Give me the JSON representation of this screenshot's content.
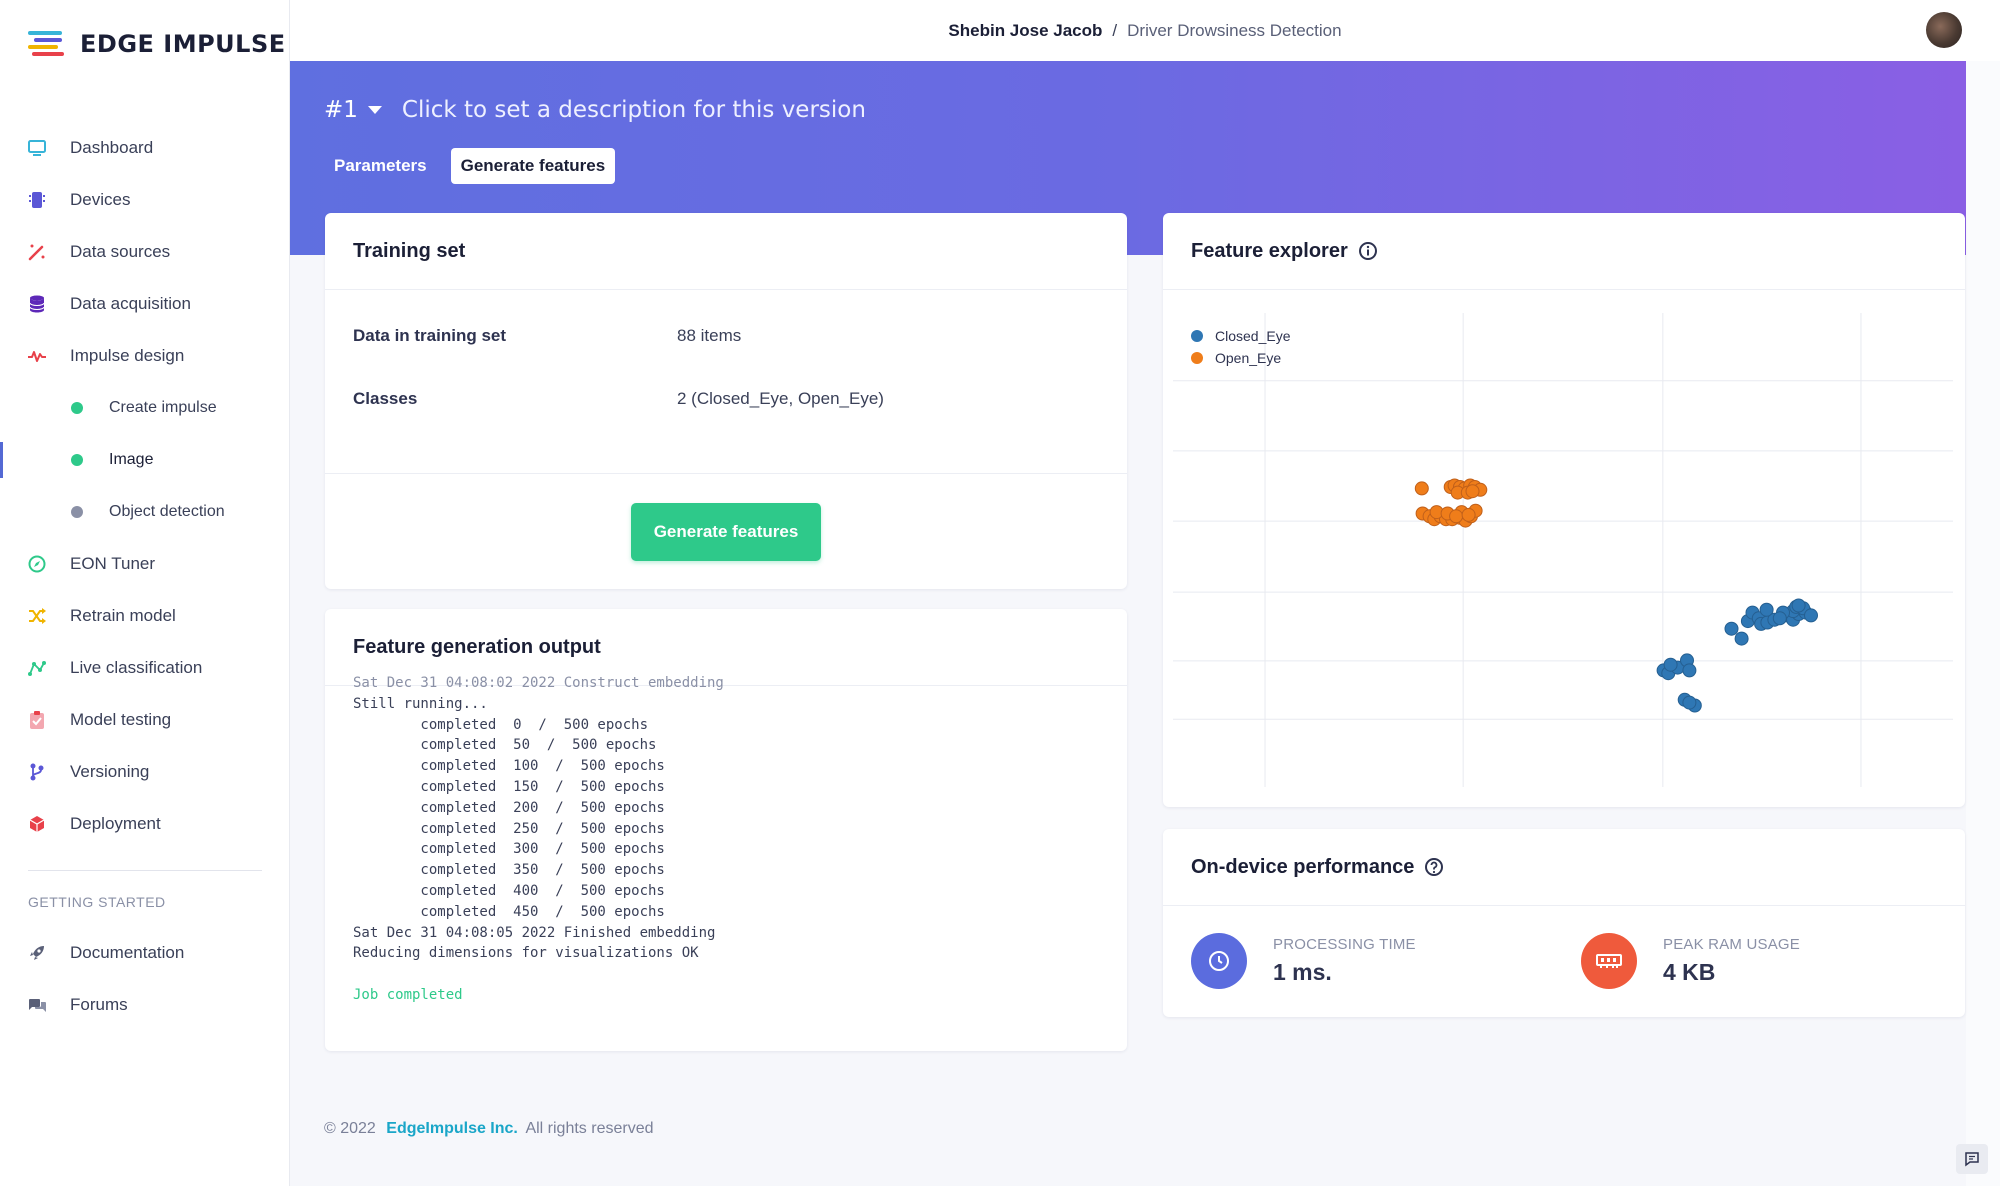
{
  "logo": {
    "text": "EDGE IMPULSE"
  },
  "nav": {
    "items": [
      {
        "label": "Dashboard",
        "icon": "monitor-icon",
        "color": "#37b4d8"
      },
      {
        "label": "Devices",
        "icon": "chip-icon",
        "color": "#5b57d6"
      },
      {
        "label": "Data sources",
        "icon": "magic-wand-icon",
        "color": "#e8414a"
      },
      {
        "label": "Data acquisition",
        "icon": "database-icon",
        "color": "#5d28b8"
      },
      {
        "label": "Impulse design",
        "icon": "pulse-icon",
        "color": "#e8414a"
      }
    ],
    "sub_items": [
      {
        "label": "Create impulse",
        "dot": "#2ec98a"
      },
      {
        "label": "Image",
        "dot": "#2ec98a"
      },
      {
        "label": "Object detection",
        "dot": "#8a90a6"
      }
    ],
    "items2": [
      {
        "label": "EON Tuner",
        "icon": "compass-icon",
        "color": "#2ec98a"
      },
      {
        "label": "Retrain model",
        "icon": "shuffle-icon",
        "color": "#f0b400"
      },
      {
        "label": "Live classification",
        "icon": "graph-icon",
        "color": "#2ec98a"
      },
      {
        "label": "Model testing",
        "icon": "clipboard-check-icon",
        "color": "#e8414a"
      },
      {
        "label": "Versioning",
        "icon": "branch-icon",
        "color": "#5b57d6"
      },
      {
        "label": "Deployment",
        "icon": "cube-icon",
        "color": "#e8414a"
      }
    ],
    "getting_started": "GETTING STARTED",
    "help": [
      {
        "label": "Documentation",
        "icon": "rocket-icon"
      },
      {
        "label": "Forums",
        "icon": "chat-icon"
      }
    ]
  },
  "topbar": {
    "user": "Shebin Jose Jacob",
    "separator": "/",
    "project": "Driver Drowsiness Detection"
  },
  "banner": {
    "version": "#1",
    "description": "Click to set a description for this version",
    "tabs": [
      "Parameters",
      "Generate features"
    ]
  },
  "training_set": {
    "title": "Training set",
    "rows": [
      {
        "key": "Data in training set",
        "value": "88 items"
      },
      {
        "key": "Classes",
        "value": "2 (Closed_Eye, Open_Eye)"
      }
    ],
    "button": "Generate features"
  },
  "output": {
    "title": "Feature generation output",
    "cut_line": "Sat Dec 31 04:08:02 2022 Construct embedding",
    "lines": [
      "Still running...",
      "        completed  0  /  500 epochs",
      "        completed  50  /  500 epochs",
      "        completed  100  /  500 epochs",
      "        completed  150  /  500 epochs",
      "        completed  200  /  500 epochs",
      "        completed  250  /  500 epochs",
      "        completed  300  /  500 epochs",
      "        completed  350  /  500 epochs",
      "        completed  400  /  500 epochs",
      "        completed  450  /  500 epochs",
      "Sat Dec 31 04:08:05 2022 Finished embedding",
      "Reducing dimensions for visualizations OK"
    ],
    "status": "Job completed"
  },
  "explorer": {
    "title": "Feature explorer",
    "legend": [
      {
        "label": "Closed_Eye",
        "color": "#2f77b4"
      },
      {
        "label": "Open_Eye",
        "color": "#ef7d1a"
      }
    ]
  },
  "chart_data": {
    "type": "scatter",
    "xlim": [
      0,
      100
    ],
    "ylim": [
      0,
      100
    ],
    "grid": true,
    "legend": "top-left",
    "series": [
      {
        "name": "Open_Eye",
        "color": "#ef7d1a",
        "points": [
          [
            31.9,
            63.0
          ],
          [
            35.6,
            63.3
          ],
          [
            36.1,
            63.6
          ],
          [
            36.8,
            63.3
          ],
          [
            37.4,
            63.0
          ],
          [
            38.1,
            63.6
          ],
          [
            38.7,
            63.3
          ],
          [
            39.4,
            62.7
          ],
          [
            36.5,
            62.1
          ],
          [
            37.8,
            62.1
          ],
          [
            38.4,
            62.4
          ],
          [
            32.0,
            57.7
          ],
          [
            32.9,
            57.1
          ],
          [
            33.5,
            56.5
          ],
          [
            34.3,
            57.1
          ],
          [
            35.0,
            56.5
          ],
          [
            35.8,
            56.5
          ],
          [
            36.8,
            56.8
          ],
          [
            37.5,
            56.2
          ],
          [
            38.2,
            57.1
          ],
          [
            37.0,
            58.0
          ],
          [
            38.8,
            58.3
          ],
          [
            33.8,
            58.0
          ],
          [
            35.2,
            57.7
          ],
          [
            36.3,
            57.1
          ],
          [
            37.9,
            57.4
          ]
        ]
      },
      {
        "name": "Closed_Eye",
        "color": "#2f77b4",
        "points": [
          [
            62.9,
            24.6
          ],
          [
            63.5,
            24.0
          ],
          [
            64.7,
            25.2
          ],
          [
            65.9,
            26.7
          ],
          [
            63.8,
            25.8
          ],
          [
            66.2,
            24.6
          ],
          [
            65.6,
            18.4
          ],
          [
            66.9,
            17.2
          ],
          [
            66.2,
            17.8
          ],
          [
            71.6,
            33.4
          ],
          [
            73.7,
            35.0
          ],
          [
            74.3,
            36.8
          ],
          [
            75.1,
            35.6
          ],
          [
            75.4,
            34.4
          ],
          [
            76.2,
            34.7
          ],
          [
            77.1,
            35.3
          ],
          [
            78.5,
            36.2
          ],
          [
            79.5,
            35.3
          ],
          [
            80.2,
            36.5
          ],
          [
            81.1,
            36.8
          ],
          [
            79.5,
            37.1
          ],
          [
            79.9,
            38.0
          ],
          [
            80.8,
            37.7
          ],
          [
            78.2,
            36.8
          ],
          [
            80.2,
            38.3
          ],
          [
            81.8,
            36.2
          ],
          [
            77.8,
            35.6
          ],
          [
            72.9,
            31.3
          ],
          [
            76.1,
            37.4
          ]
        ]
      }
    ]
  },
  "performance": {
    "title": "On-device performance",
    "items": [
      {
        "label": "PROCESSING TIME",
        "value": "1 ms.",
        "color": "#5b6cde"
      },
      {
        "label": "PEAK RAM USAGE",
        "value": "4 KB",
        "color": "#ef5a3c"
      }
    ]
  },
  "footer": {
    "copyright": "© 2022",
    "company": "EdgeImpulse Inc.",
    "rights": "All rights reserved"
  }
}
